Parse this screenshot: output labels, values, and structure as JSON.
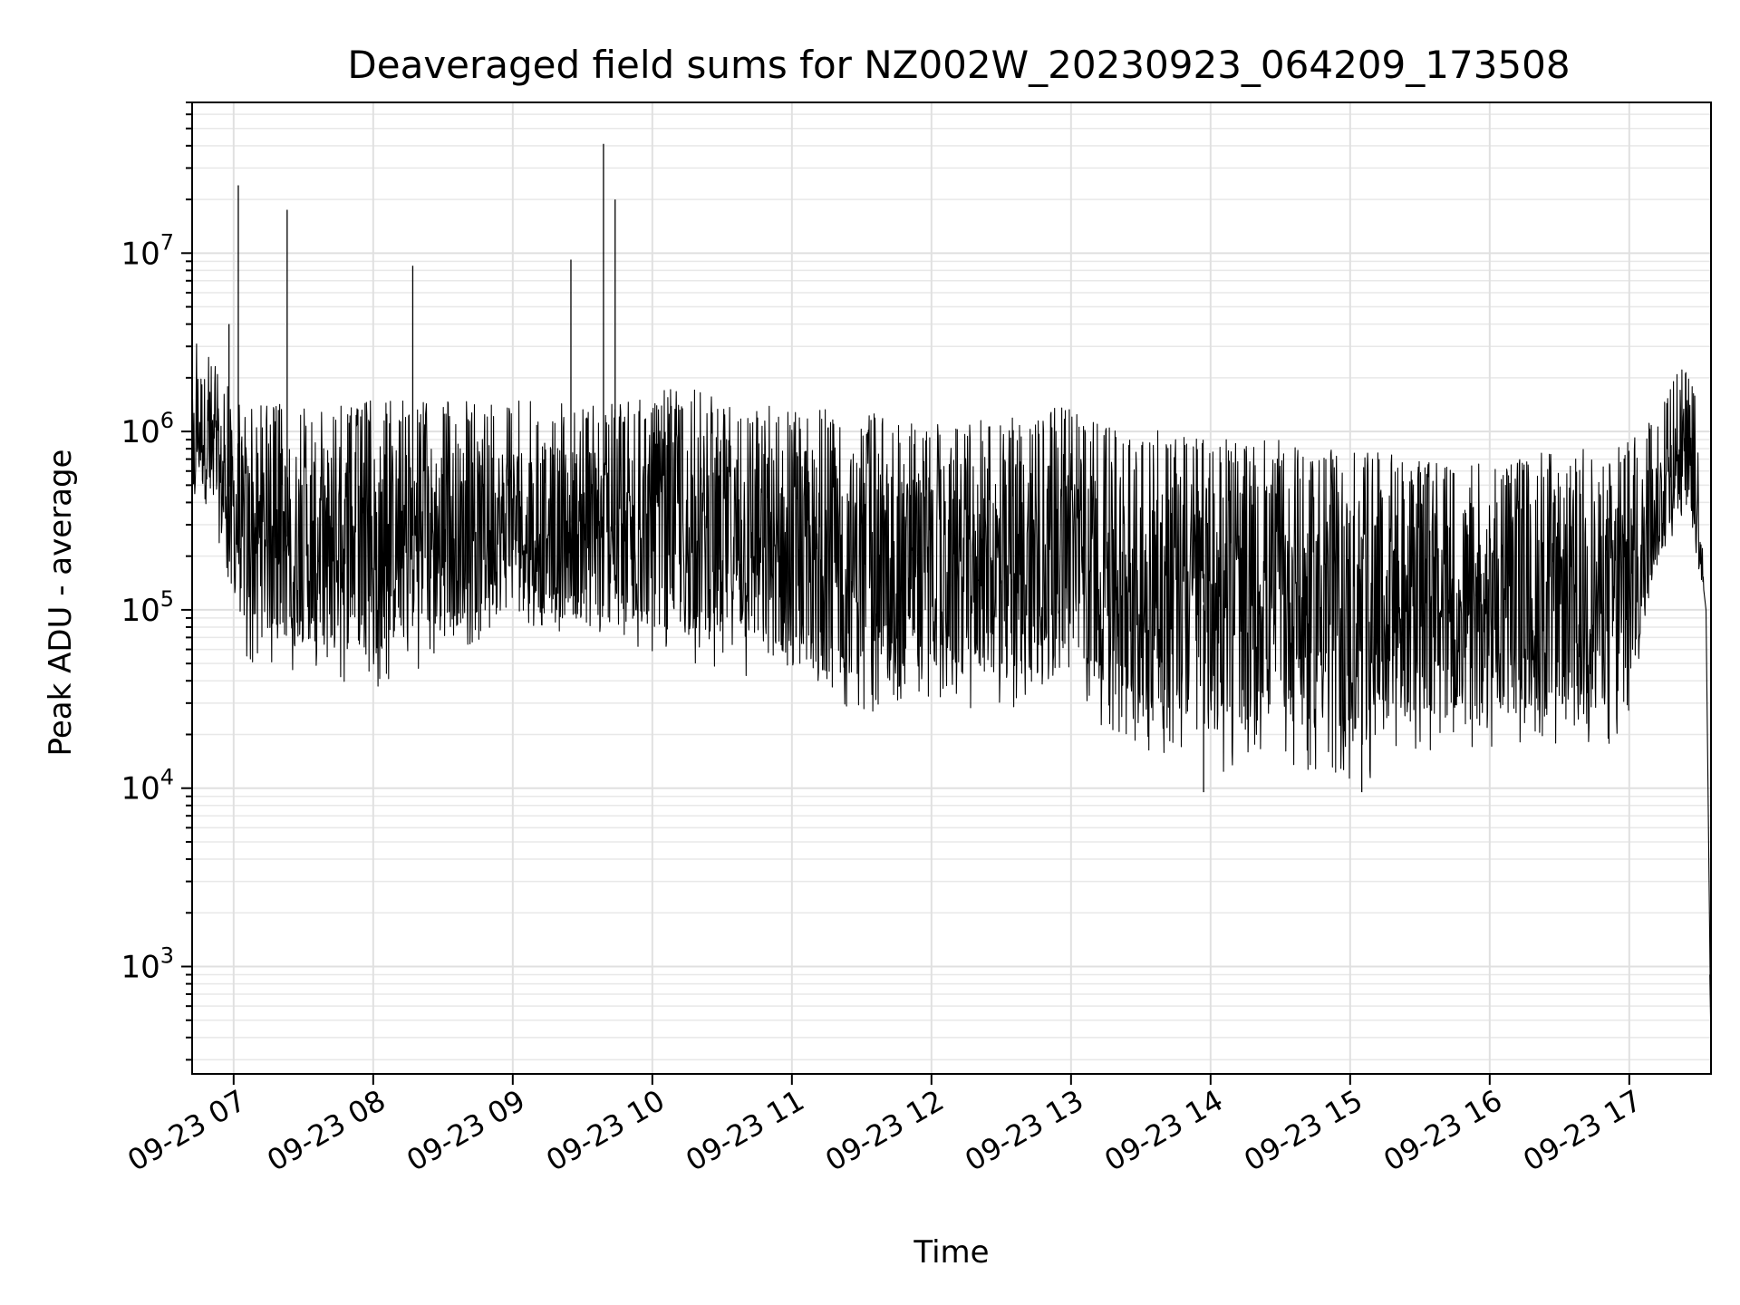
{
  "chart_data": {
    "type": "line",
    "title": "Deaveraged field sums for NZ002W_20230923_064209_173508",
    "xlabel": "Time",
    "ylabel": "Peak ADU - average",
    "yscale": "log",
    "grid": "major and minor",
    "x_range": [
      "2023-09-23 06:42:09",
      "2023-09-23 17:35:08"
    ],
    "ylim": [
      250,
      70000000
    ],
    "x_ticks": [
      {
        "time": "2023-09-23 07:00",
        "label": "09-23 07"
      },
      {
        "time": "2023-09-23 08:00",
        "label": "09-23 08"
      },
      {
        "time": "2023-09-23 09:00",
        "label": "09-23 09"
      },
      {
        "time": "2023-09-23 10:00",
        "label": "09-23 10"
      },
      {
        "time": "2023-09-23 11:00",
        "label": "09-23 11"
      },
      {
        "time": "2023-09-23 12:00",
        "label": "09-23 12"
      },
      {
        "time": "2023-09-23 13:00",
        "label": "09-23 13"
      },
      {
        "time": "2023-09-23 14:00",
        "label": "09-23 14"
      },
      {
        "time": "2023-09-23 15:00",
        "label": "09-23 15"
      },
      {
        "time": "2023-09-23 16:00",
        "label": "09-23 16"
      },
      {
        "time": "2023-09-23 17:00",
        "label": "09-23 17"
      }
    ],
    "y_ticks": [
      {
        "value": 1000,
        "base": "10",
        "exp": "3"
      },
      {
        "value": 10000,
        "base": "10",
        "exp": "4"
      },
      {
        "value": 100000,
        "base": "10",
        "exp": "5"
      },
      {
        "value": 1000000,
        "base": "10",
        "exp": "6"
      },
      {
        "value": 10000000,
        "base": "10",
        "exp": "7"
      }
    ],
    "envelope": [
      {
        "time": "2023-09-23 06:42",
        "low": 200000,
        "high": 2400000
      },
      {
        "time": "2023-09-23 06:45",
        "low": 500000,
        "high": 4400000
      },
      {
        "time": "2023-09-23 06:55",
        "low": 200000,
        "high": 2000000
      },
      {
        "time": "2023-09-23 07:05",
        "low": 50000,
        "high": 1500000
      },
      {
        "time": "2023-09-23 07:30",
        "low": 45000,
        "high": 1400000
      },
      {
        "time": "2023-09-23 08:00",
        "low": 35000,
        "high": 1500000
      },
      {
        "time": "2023-09-23 08:30",
        "low": 55000,
        "high": 1500000
      },
      {
        "time": "2023-09-23 09:00",
        "low": 80000,
        "high": 1500000
      },
      {
        "time": "2023-09-23 09:30",
        "low": 65000,
        "high": 1400000
      },
      {
        "time": "2023-09-23 10:00",
        "low": 55000,
        "high": 1600000
      },
      {
        "time": "2023-09-23 10:10",
        "low": 50000,
        "high": 1800000
      },
      {
        "time": "2023-09-23 10:40",
        "low": 40000,
        "high": 1500000
      },
      {
        "time": "2023-09-23 11:00",
        "low": 30000,
        "high": 1400000
      },
      {
        "time": "2023-09-23 11:30",
        "low": 25000,
        "high": 1300000
      },
      {
        "time": "2023-09-23 12:00",
        "low": 30000,
        "high": 1100000
      },
      {
        "time": "2023-09-23 12:30",
        "low": 25000,
        "high": 1200000
      },
      {
        "time": "2023-09-23 13:00",
        "low": 40000,
        "high": 1400000
      },
      {
        "time": "2023-09-23 13:15",
        "low": 20000,
        "high": 1100000
      },
      {
        "time": "2023-09-23 13:40",
        "low": 15000,
        "high": 1000000
      },
      {
        "time": "2023-09-23 14:00",
        "low": 12000,
        "high": 900000
      },
      {
        "time": "2023-09-23 14:30",
        "low": 14000,
        "high": 900000
      },
      {
        "time": "2023-09-23 15:00",
        "low": 10000,
        "high": 800000
      },
      {
        "time": "2023-09-23 15:30",
        "low": 15000,
        "high": 700000
      },
      {
        "time": "2023-09-23 16:00",
        "low": 16000,
        "high": 650000
      },
      {
        "time": "2023-09-23 16:30",
        "low": 17000,
        "high": 800000
      },
      {
        "time": "2023-09-23 17:00",
        "low": 17000,
        "high": 900000
      },
      {
        "time": "2023-09-23 17:10",
        "low": 150000,
        "high": 1200000
      },
      {
        "time": "2023-09-23 17:25",
        "low": 400000,
        "high": 2800000
      },
      {
        "time": "2023-09-23 17:30",
        "low": 150000,
        "high": 1400000
      },
      {
        "time": "2023-09-23 17:33",
        "low": 100000,
        "high": 200000
      },
      {
        "time": "2023-09-23 17:35",
        "low": 450,
        "high": 800
      }
    ],
    "spikes": [
      {
        "time": "2023-09-23 06:58",
        "value": 4000000
      },
      {
        "time": "2023-09-23 07:02",
        "value": 24000000
      },
      {
        "time": "2023-09-23 07:23",
        "value": 17500000
      },
      {
        "time": "2023-09-23 08:17",
        "value": 8500000
      },
      {
        "time": "2023-09-23 09:25",
        "value": 9200000
      },
      {
        "time": "2023-09-23 09:39",
        "value": 41000000
      },
      {
        "time": "2023-09-23 09:44",
        "value": 20000000
      },
      {
        "time": "2023-09-23 13:57",
        "value": 9500
      },
      {
        "time": "2023-09-23 15:05",
        "value": 9500
      }
    ]
  }
}
